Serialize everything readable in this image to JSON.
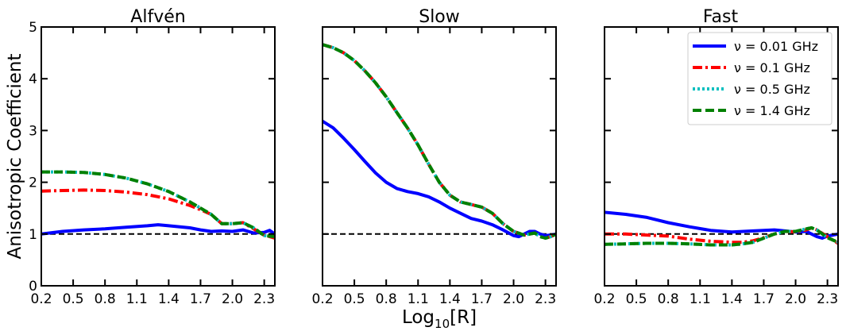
{
  "figure": {
    "ylabel": "Anisotropic Coefficient",
    "xlabel_main": "Log",
    "xlabel_sub": "10",
    "xlabel_tail": "[R]"
  },
  "legend": {
    "entries": [
      {
        "label": "ν = 0.01 GHz",
        "color": "#0000ff",
        "style": "solid"
      },
      {
        "label": "ν = 0.1 GHz",
        "color": "#ff0000",
        "style": "dashdot"
      },
      {
        "label": "ν = 0.5 GHz",
        "color": "#00bfbf",
        "style": "dotted"
      },
      {
        "label": "ν = 1.4 GHz",
        "color": "#008000",
        "style": "dashed"
      }
    ],
    "placement": "upper-right of Fast panel"
  },
  "chart_data": [
    {
      "type": "line",
      "title": "Alfvén",
      "xlabel": "",
      "ylabel": "Anisotropic Coefficient",
      "xlim": [
        0.2,
        2.4
      ],
      "ylim": [
        0,
        5
      ],
      "xticks": [
        "0.2",
        "0.5",
        "0.8",
        "1.1",
        "1.4",
        "1.7",
        "2.0",
        "2.3"
      ],
      "yticks": [
        "0",
        "1",
        "2",
        "3",
        "4",
        "5"
      ],
      "reference_line": 1,
      "grid": false,
      "series": [
        {
          "name": "ν = 0.01 GHz",
          "x": [
            0.2,
            0.4,
            0.6,
            0.8,
            1.0,
            1.2,
            1.3,
            1.4,
            1.6,
            1.7,
            1.8,
            1.9,
            2.0,
            2.1,
            2.2,
            2.3,
            2.35,
            2.4
          ],
          "y": [
            1.0,
            1.05,
            1.08,
            1.1,
            1.13,
            1.16,
            1.18,
            1.16,
            1.12,
            1.08,
            1.05,
            1.06,
            1.05,
            1.08,
            1.02,
            1.03,
            1.07,
            1.0
          ]
        },
        {
          "name": "ν = 0.1 GHz",
          "x": [
            0.2,
            0.4,
            0.6,
            0.8,
            1.0,
            1.2,
            1.4,
            1.6,
            1.7,
            1.8,
            1.9,
            2.0,
            2.1,
            2.2,
            2.3,
            2.4
          ],
          "y": [
            1.83,
            1.84,
            1.85,
            1.84,
            1.81,
            1.76,
            1.68,
            1.55,
            1.47,
            1.38,
            1.2,
            1.2,
            1.22,
            1.1,
            0.98,
            0.92
          ]
        },
        {
          "name": "ν = 0.5 GHz",
          "x": [
            0.2,
            0.4,
            0.6,
            0.8,
            1.0,
            1.2,
            1.4,
            1.6,
            1.7,
            1.8,
            1.9,
            2.0,
            2.1,
            2.2,
            2.3,
            2.4
          ],
          "y": [
            2.2,
            2.2,
            2.19,
            2.15,
            2.08,
            1.97,
            1.82,
            1.62,
            1.5,
            1.38,
            1.2,
            1.2,
            1.22,
            1.12,
            0.97,
            0.95
          ]
        },
        {
          "name": "ν = 1.4 GHz",
          "x": [
            0.2,
            0.4,
            0.6,
            0.8,
            1.0,
            1.2,
            1.4,
            1.6,
            1.7,
            1.8,
            1.9,
            2.0,
            2.1,
            2.2,
            2.3,
            2.4
          ],
          "y": [
            2.2,
            2.2,
            2.19,
            2.15,
            2.08,
            1.97,
            1.82,
            1.62,
            1.5,
            1.38,
            1.2,
            1.2,
            1.22,
            1.12,
            0.97,
            0.95
          ]
        }
      ]
    },
    {
      "type": "line",
      "title": "Slow",
      "xlabel": "Log10[R]",
      "ylabel": "",
      "xlim": [
        0.2,
        2.4
      ],
      "ylim": [
        0,
        5
      ],
      "xticks": [
        "0.2",
        "0.5",
        "0.8",
        "1.1",
        "1.4",
        "1.7",
        "2.0",
        "2.3"
      ],
      "yticks": [],
      "reference_line": 1,
      "grid": false,
      "series": [
        {
          "name": "ν = 0.01 GHz",
          "x": [
            0.2,
            0.3,
            0.4,
            0.5,
            0.6,
            0.7,
            0.8,
            0.9,
            1.0,
            1.1,
            1.2,
            1.3,
            1.4,
            1.5,
            1.6,
            1.7,
            1.8,
            1.9,
            2.0,
            2.05,
            2.1,
            2.15,
            2.2,
            2.25,
            2.3,
            2.35,
            2.4
          ],
          "y": [
            3.18,
            3.05,
            2.85,
            2.63,
            2.4,
            2.18,
            2.0,
            1.88,
            1.82,
            1.78,
            1.72,
            1.62,
            1.5,
            1.4,
            1.3,
            1.25,
            1.18,
            1.08,
            0.97,
            0.95,
            1.0,
            1.05,
            1.05,
            1.0,
            0.97,
            0.98,
            1.0
          ]
        },
        {
          "name": "ν = 0.1 GHz",
          "x": [
            0.2,
            0.3,
            0.4,
            0.5,
            0.6,
            0.7,
            0.8,
            0.9,
            1.0,
            1.1,
            1.2,
            1.3,
            1.4,
            1.5,
            1.6,
            1.7,
            1.8,
            1.9,
            2.0,
            2.1,
            2.2,
            2.25,
            2.3,
            2.35,
            2.4
          ],
          "y": [
            4.66,
            4.6,
            4.5,
            4.35,
            4.15,
            3.92,
            3.65,
            3.35,
            3.05,
            2.72,
            2.35,
            2.0,
            1.75,
            1.62,
            1.57,
            1.52,
            1.4,
            1.2,
            1.05,
            0.98,
            1.02,
            0.95,
            0.92,
            0.95,
            1.0
          ]
        },
        {
          "name": "ν = 0.5 GHz",
          "x": [
            0.2,
            0.3,
            0.4,
            0.5,
            0.6,
            0.7,
            0.8,
            0.9,
            1.0,
            1.1,
            1.2,
            1.3,
            1.4,
            1.5,
            1.6,
            1.7,
            1.8,
            1.9,
            2.0,
            2.1,
            2.2,
            2.25,
            2.3,
            2.35,
            2.4
          ],
          "y": [
            4.66,
            4.6,
            4.5,
            4.35,
            4.15,
            3.92,
            3.65,
            3.35,
            3.05,
            2.72,
            2.35,
            2.0,
            1.75,
            1.62,
            1.57,
            1.52,
            1.4,
            1.2,
            1.05,
            0.98,
            1.02,
            0.95,
            0.92,
            0.95,
            1.0
          ]
        },
        {
          "name": "ν = 1.4 GHz",
          "x": [
            0.2,
            0.3,
            0.4,
            0.5,
            0.6,
            0.7,
            0.8,
            0.9,
            1.0,
            1.1,
            1.2,
            1.3,
            1.4,
            1.5,
            1.6,
            1.7,
            1.8,
            1.9,
            2.0,
            2.1,
            2.2,
            2.25,
            2.3,
            2.35,
            2.4
          ],
          "y": [
            4.66,
            4.6,
            4.5,
            4.35,
            4.15,
            3.92,
            3.65,
            3.35,
            3.05,
            2.72,
            2.35,
            2.0,
            1.75,
            1.62,
            1.57,
            1.52,
            1.4,
            1.2,
            1.05,
            0.98,
            1.02,
            0.95,
            0.92,
            0.95,
            1.0
          ]
        }
      ]
    },
    {
      "type": "line",
      "title": "Fast",
      "xlabel": "",
      "ylabel": "",
      "xlim": [
        0.2,
        2.4
      ],
      "ylim": [
        0,
        5
      ],
      "xticks": [
        "0.2",
        "0.5",
        "0.8",
        "1.1",
        "1.4",
        "1.7",
        "2.0",
        "2.3"
      ],
      "yticks": [],
      "reference_line": 1,
      "grid": false,
      "series": [
        {
          "name": "ν = 0.01 GHz",
          "x": [
            0.2,
            0.4,
            0.6,
            0.8,
            1.0,
            1.2,
            1.4,
            1.6,
            1.7,
            1.8,
            1.9,
            2.0,
            2.1,
            2.2,
            2.25,
            2.3,
            2.35,
            2.4
          ],
          "y": [
            1.42,
            1.38,
            1.32,
            1.22,
            1.14,
            1.07,
            1.04,
            1.06,
            1.07,
            1.08,
            1.06,
            1.04,
            1.05,
            0.95,
            0.92,
            0.96,
            0.98,
            1.0
          ]
        },
        {
          "name": "ν = 0.1 GHz",
          "x": [
            0.2,
            0.4,
            0.6,
            0.8,
            1.0,
            1.2,
            1.4,
            1.5,
            1.6,
            1.7,
            1.8,
            1.9,
            2.0,
            2.1,
            2.15,
            2.2,
            2.3,
            2.4
          ],
          "y": [
            1.0,
            1.0,
            0.98,
            0.96,
            0.9,
            0.86,
            0.84,
            0.84,
            0.87,
            0.93,
            1.0,
            1.05,
            1.04,
            1.08,
            1.12,
            1.08,
            0.95,
            0.82
          ]
        },
        {
          "name": "ν = 0.5 GHz",
          "x": [
            0.2,
            0.4,
            0.6,
            0.8,
            1.0,
            1.2,
            1.4,
            1.5,
            1.6,
            1.7,
            1.8,
            1.9,
            2.0,
            2.1,
            2.15,
            2.2,
            2.3,
            2.4
          ],
          "y": [
            0.8,
            0.81,
            0.82,
            0.82,
            0.81,
            0.79,
            0.79,
            0.81,
            0.84,
            0.92,
            1.0,
            1.05,
            1.05,
            1.1,
            1.12,
            1.08,
            0.93,
            0.84
          ]
        },
        {
          "name": "ν = 1.4 GHz",
          "x": [
            0.2,
            0.4,
            0.6,
            0.8,
            1.0,
            1.2,
            1.4,
            1.5,
            1.6,
            1.7,
            1.8,
            1.9,
            2.0,
            2.1,
            2.15,
            2.2,
            2.3,
            2.4
          ],
          "y": [
            0.8,
            0.81,
            0.82,
            0.82,
            0.81,
            0.79,
            0.79,
            0.81,
            0.84,
            0.92,
            1.0,
            1.05,
            1.05,
            1.1,
            1.12,
            1.08,
            0.93,
            0.84
          ]
        }
      ]
    }
  ]
}
